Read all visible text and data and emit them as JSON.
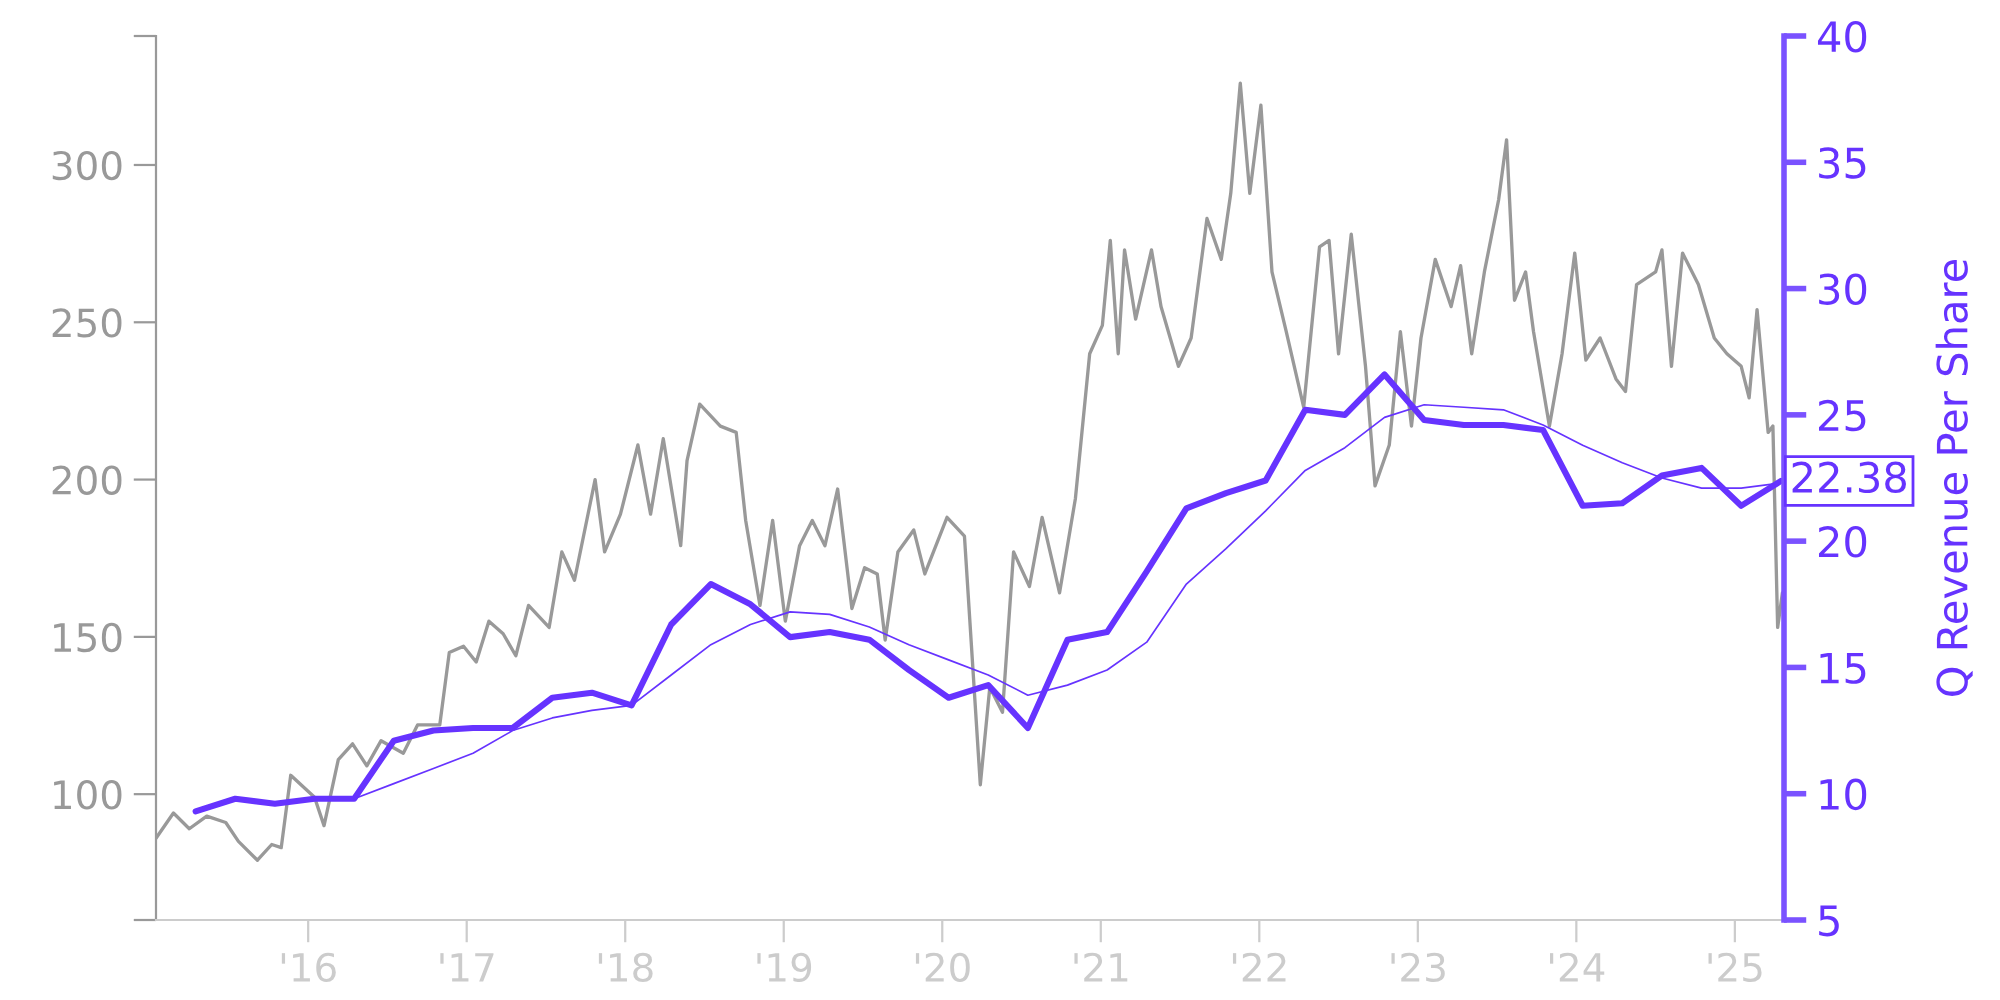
{
  "chart_data": {
    "type": "line",
    "y2label": "Q Revenue Per Share",
    "xlim": [
      2015.04,
      2025.31
    ],
    "xticks": [
      {
        "value": 2016,
        "label": "'16"
      },
      {
        "value": 2017,
        "label": "'17"
      },
      {
        "value": 2018,
        "label": "'18"
      },
      {
        "value": 2019,
        "label": "'19"
      },
      {
        "value": 2020,
        "label": "'20"
      },
      {
        "value": 2021,
        "label": "'21"
      },
      {
        "value": 2022,
        "label": "'22"
      },
      {
        "value": 2023,
        "label": "'23"
      },
      {
        "value": 2024,
        "label": "'24"
      },
      {
        "value": 2025,
        "label": "'25"
      }
    ],
    "ylim": [
      60,
      341
    ],
    "yticks": [
      {
        "value": 60,
        "label": null
      },
      100,
      150,
      200,
      250,
      300,
      {
        "value": 341,
        "label": null
      }
    ],
    "y2lim": [
      5,
      40
    ],
    "y2ticks": [
      5,
      10,
      15,
      20,
      25,
      30,
      35,
      40
    ],
    "grid": false,
    "marker": "none",
    "line_style": "solid",
    "series": [
      {
        "color": "#999999",
        "x": [
          2015.04,
          2015.15,
          2015.25,
          2015.36,
          2015.48,
          2015.56,
          2015.68,
          2015.77,
          2015.83,
          2015.89,
          2016.04,
          2016.1,
          2016.19,
          2016.28,
          2016.37,
          2016.46,
          2016.6,
          2016.69,
          2016.83,
          2016.89,
          2016.98,
          2017.06,
          2017.14,
          2017.23,
          2017.31,
          2017.39,
          2017.52,
          2017.6,
          2017.68,
          2017.81,
          2017.87,
          2017.97,
          2018.08,
          2018.16,
          2018.24,
          2018.35,
          2018.39,
          2018.47,
          2018.6,
          2018.7,
          2018.76,
          2018.85,
          2018.93,
          2019.01,
          2019.1,
          2019.18,
          2019.26,
          2019.34,
          2019.43,
          2019.51,
          2019.59,
          2019.64,
          2019.72,
          2019.82,
          2019.89,
          2020.03,
          2020.14,
          2020.24,
          2020.3,
          2020.38,
          2020.45,
          2020.55,
          2020.63,
          2020.74,
          2020.84,
          2020.93,
          2021.01,
          2021.06,
          2021.11,
          2021.15,
          2021.22,
          2021.32,
          2021.38,
          2021.49,
          2021.57,
          2021.67,
          2021.76,
          2021.82,
          2021.88,
          2021.94,
          2022.01,
          2022.08,
          2022.17,
          2022.28,
          2022.38,
          2022.44,
          2022.5,
          2022.58,
          2022.67,
          2022.73,
          2022.82,
          2022.89,
          2022.96,
          2023.02,
          2023.11,
          2023.21,
          2023.27,
          2023.34,
          2023.42,
          2023.51,
          2023.56,
          2023.61,
          2023.68,
          2023.73,
          2023.83,
          2023.91,
          2023.99,
          2024.06,
          2024.15,
          2024.25,
          2024.31,
          2024.38,
          2024.5,
          2024.54,
          2024.6,
          2024.67,
          2024.77,
          2024.87,
          2024.95,
          2025.04,
          2025.09,
          2025.14,
          2025.21,
          2025.24,
          2025.27,
          2025.3
        ],
        "values": [
          86,
          94,
          89,
          93,
          91,
          85,
          79,
          84,
          83,
          106,
          99,
          90,
          111,
          116,
          109,
          117,
          113,
          122,
          122,
          145,
          147,
          142,
          155,
          151,
          144,
          160,
          153,
          177,
          168,
          200,
          177,
          189,
          211,
          189,
          213,
          179,
          206,
          224,
          217,
          215,
          187,
          160,
          187,
          155,
          179,
          187,
          179,
          197,
          159,
          172,
          170,
          149,
          177,
          184,
          170,
          188,
          182,
          103,
          134,
          126,
          177,
          166,
          188,
          164,
          194,
          240,
          249,
          276,
          240,
          273,
          251,
          273,
          255,
          236,
          245,
          283,
          270,
          291,
          326,
          291,
          319,
          266,
          247,
          223,
          274,
          276,
          240,
          278,
          236,
          198,
          211,
          247,
          217,
          245,
          270,
          255,
          268,
          240,
          266,
          289,
          308,
          257,
          266,
          247,
          217,
          240,
          272,
          238,
          245,
          232,
          228,
          262,
          266,
          273,
          236,
          272,
          262,
          245,
          240,
          236,
          226,
          254,
          215,
          217,
          153,
          164
        ]
      },
      {
        "color": "#6633ff",
        "axis": "y2",
        "x": [
          2015.29,
          2015.54,
          2015.79,
          2016.04,
          2016.29,
          2016.54,
          2016.79,
          2017.04,
          2017.29,
          2017.54,
          2017.79,
          2018.04,
          2018.29,
          2018.54,
          2018.79,
          2019.04,
          2019.29,
          2019.54,
          2019.79,
          2020.04,
          2020.29,
          2020.54,
          2020.79,
          2021.04,
          2021.29,
          2021.54,
          2021.79,
          2022.04,
          2022.29,
          2022.54,
          2022.79,
          2023.04,
          2023.29,
          2023.54,
          2023.79,
          2024.04,
          2024.29,
          2024.54,
          2024.79,
          2025.04,
          2025.29
        ],
        "values": [
          9.3,
          9.8,
          9.6,
          9.8,
          9.8,
          12.1,
          12.5,
          12.6,
          12.6,
          13.8,
          14.0,
          13.5,
          16.7,
          18.3,
          17.5,
          16.2,
          16.4,
          16.1,
          14.9,
          13.8,
          14.3,
          12.6,
          16.1,
          16.4,
          18.8,
          21.3,
          21.9,
          22.4,
          25.2,
          25.0,
          26.6,
          24.8,
          24.6,
          24.6,
          24.4,
          21.4,
          21.5,
          22.6,
          22.9,
          21.4,
          22.38
        ],
        "value_labels": [
          null,
          null,
          null,
          null,
          null,
          null,
          null,
          null,
          null,
          null,
          null,
          null,
          null,
          null,
          null,
          null,
          null,
          null,
          null,
          null,
          null,
          null,
          null,
          null,
          null,
          null,
          null,
          null,
          null,
          null,
          null,
          null,
          null,
          null,
          null,
          null,
          null,
          null,
          null,
          null,
          "22.38"
        ]
      },
      {
        "color": "#6633ff",
        "axis": "y2",
        "x": [
          2016.29,
          2016.54,
          2016.79,
          2017.04,
          2017.29,
          2017.54,
          2017.79,
          2018.04,
          2018.29,
          2018.54,
          2018.79,
          2019.04,
          2019.29,
          2019.54,
          2019.79,
          2020.04,
          2020.29,
          2020.54,
          2020.79,
          2021.04,
          2021.29,
          2021.54,
          2021.79,
          2022.04,
          2022.29,
          2022.54,
          2022.79,
          2023.04,
          2023.29,
          2023.54,
          2023.79,
          2024.04,
          2024.29,
          2024.54,
          2024.79,
          2025.04,
          2025.29
        ],
        "values": [
          9.8,
          10.4,
          11.0,
          11.6,
          12.5,
          13.0,
          13.3,
          13.5,
          14.7,
          15.9,
          16.7,
          17.2,
          17.1,
          16.6,
          15.9,
          15.3,
          14.7,
          13.9,
          14.3,
          14.9,
          16.0,
          18.3,
          19.7,
          21.2,
          22.8,
          23.7,
          24.9,
          25.4,
          25.3,
          25.2,
          24.6,
          23.8,
          23.1,
          22.5,
          22.1,
          22.1,
          22.3
        ]
      }
    ]
  }
}
